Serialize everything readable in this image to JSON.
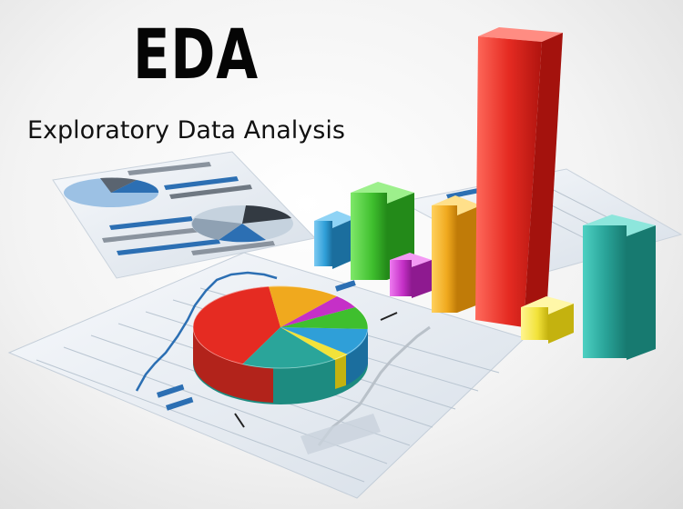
{
  "heading": {
    "title": "EDA",
    "subtitle": "Exploratory Data Analysis"
  },
  "illustration": {
    "colors": {
      "red": "#e52b22",
      "green": "#3fbf2e",
      "yellow": "#f2e23a",
      "orange": "#f0a91e",
      "magenta": "#c530c7",
      "blue": "#2f9fd8",
      "teal": "#2aa59a",
      "sheet": "#e9eef4",
      "sheet_blue": "#2c6fb3"
    }
  }
}
